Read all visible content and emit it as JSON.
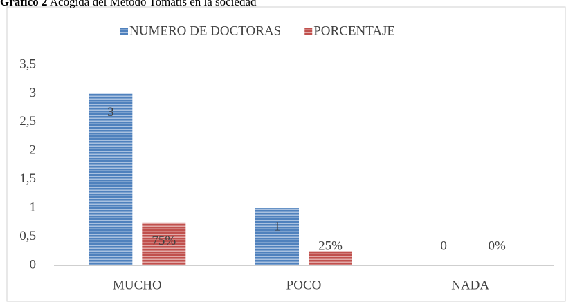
{
  "chart_data": {
    "type": "bar",
    "title_label": "Gráfico 2",
    "title": "Acogida del Método Tomatis en la sociedad",
    "categories": [
      "MUCHO",
      "POCO",
      "NADA"
    ],
    "series": [
      {
        "name": "NUMERO DE DOCTORAS",
        "color": "#4f81bd",
        "values": [
          3,
          1,
          0
        ]
      },
      {
        "name": "PORCENTAJE",
        "color": "#c0504d",
        "values": [
          0.75,
          0.25,
          0
        ],
        "value_labels": [
          "75%",
          "25%",
          "0%"
        ]
      }
    ],
    "ylim": [
      0,
      3.5
    ],
    "yticks": [
      0,
      {
        "value": 0.5,
        "label": "0,5"
      },
      1,
      {
        "value": 1.5,
        "label": "1,5"
      },
      2,
      {
        "value": 2.5,
        "label": "2,5"
      },
      3,
      {
        "value": 3.5,
        "label": "3,5"
      }
    ],
    "grid": false,
    "legend": "top"
  }
}
